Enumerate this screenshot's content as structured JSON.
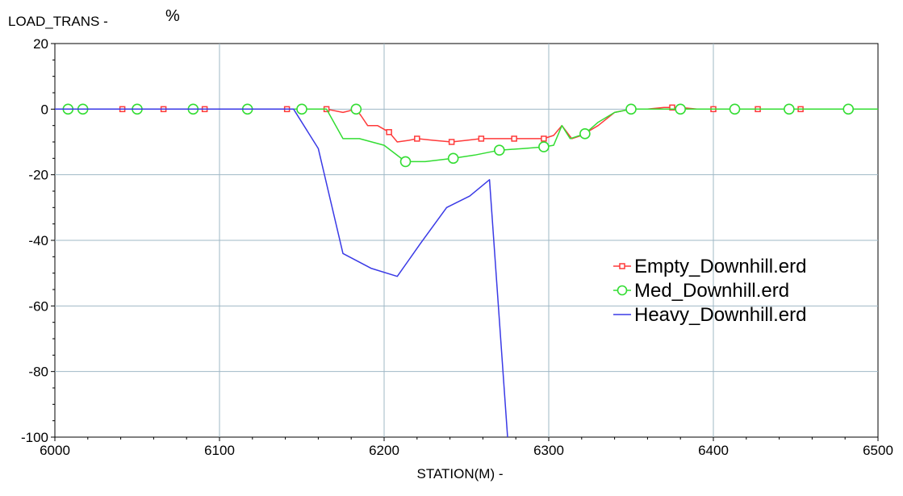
{
  "chart_data": {
    "type": "line",
    "yaxis_name": "LOAD_TRANS -",
    "yunit": "%",
    "xlabel": "STATION(M) -",
    "xlim": [
      6000,
      6500
    ],
    "ylim": [
      -100,
      20
    ],
    "xticks": [
      6000,
      6100,
      6200,
      6300,
      6400,
      6500
    ],
    "yticks": [
      20,
      0,
      -20,
      -40,
      -60,
      -80,
      -100
    ],
    "grid": true,
    "legend_position": "right",
    "series": [
      {
        "name": "Empty_Downhill.erd",
        "color": "#ff3a3a",
        "marker": "square",
        "x": [
          6000,
          6010,
          6020,
          6030,
          6040,
          6050,
          6060,
          6066,
          6075,
          6085,
          6091,
          6100,
          6110,
          6120,
          6130,
          6141,
          6150,
          6158,
          6165,
          6175,
          6183,
          6186,
          6190,
          6196,
          6203,
          6208,
          6215,
          6220,
          6230,
          6241,
          6250,
          6259,
          6270,
          6279,
          6290,
          6297,
          6303,
          6308,
          6314,
          6320,
          6330,
          6340,
          6350,
          6360,
          6370,
          6375,
          6380,
          6390,
          6400,
          6410,
          6427,
          6440,
          6453,
          6460
        ],
        "y": [
          0,
          0,
          0,
          0,
          0,
          0,
          0,
          0,
          0,
          0,
          0,
          0,
          0,
          0,
          0,
          0,
          0,
          0,
          0,
          -1,
          0,
          -2,
          -5,
          -5,
          -7,
          -10,
          -9.5,
          -9,
          -9.5,
          -10,
          -9.5,
          -9,
          -9,
          -9,
          -9,
          -9,
          -8,
          -5,
          -9,
          -8,
          -5,
          -1,
          0,
          0,
          0.5,
          0.5,
          0.5,
          0,
          0,
          0,
          0,
          0,
          0,
          0
        ],
        "marker_x": [
          6041,
          6066,
          6091,
          6141,
          6165,
          6183,
          6203,
          6220,
          6241,
          6259,
          6279,
          6297,
          6375,
          6400,
          6427,
          6453
        ]
      },
      {
        "name": "Med_Downhill.erd",
        "color": "#33dd33",
        "marker": "circle",
        "x": [
          6000,
          6008,
          6017,
          6030,
          6050,
          6070,
          6084,
          6100,
          6117,
          6130,
          6150,
          6165,
          6175,
          6185,
          6200,
          6213,
          6225,
          6242,
          6255,
          6270,
          6285,
          6297,
          6303,
          6308,
          6313,
          6322,
          6330,
          6340,
          6350,
          6365,
          6380,
          6395,
          6413,
          6430,
          6446,
          6465,
          6482,
          6500
        ],
        "y": [
          0,
          0,
          0,
          0,
          0,
          0,
          0,
          0,
          0,
          0,
          0,
          0,
          -9,
          -9,
          -11,
          -16,
          -16,
          -15,
          -14,
          -12.5,
          -12,
          -11.5,
          -11,
          -5,
          -9,
          -7.5,
          -4,
          -1,
          0,
          0,
          0,
          0,
          0,
          0,
          0,
          0,
          0,
          0
        ],
        "marker_x": [
          6008,
          6017,
          6050,
          6084,
          6117,
          6150,
          6183,
          6213,
          6242,
          6270,
          6297,
          6322,
          6350,
          6380,
          6413,
          6446,
          6482
        ]
      },
      {
        "name": "Heavy_Downhill.erd",
        "color": "#3a3ae6",
        "marker": "none",
        "x": [
          6000,
          6100,
          6145,
          6160,
          6175,
          6192,
          6208,
          6222,
          6238,
          6252,
          6264,
          6275
        ],
        "y": [
          0,
          0,
          0,
          -12,
          -44,
          -48.5,
          -51,
          -41,
          -30,
          -26.5,
          -21.5,
          -100
        ]
      }
    ]
  }
}
